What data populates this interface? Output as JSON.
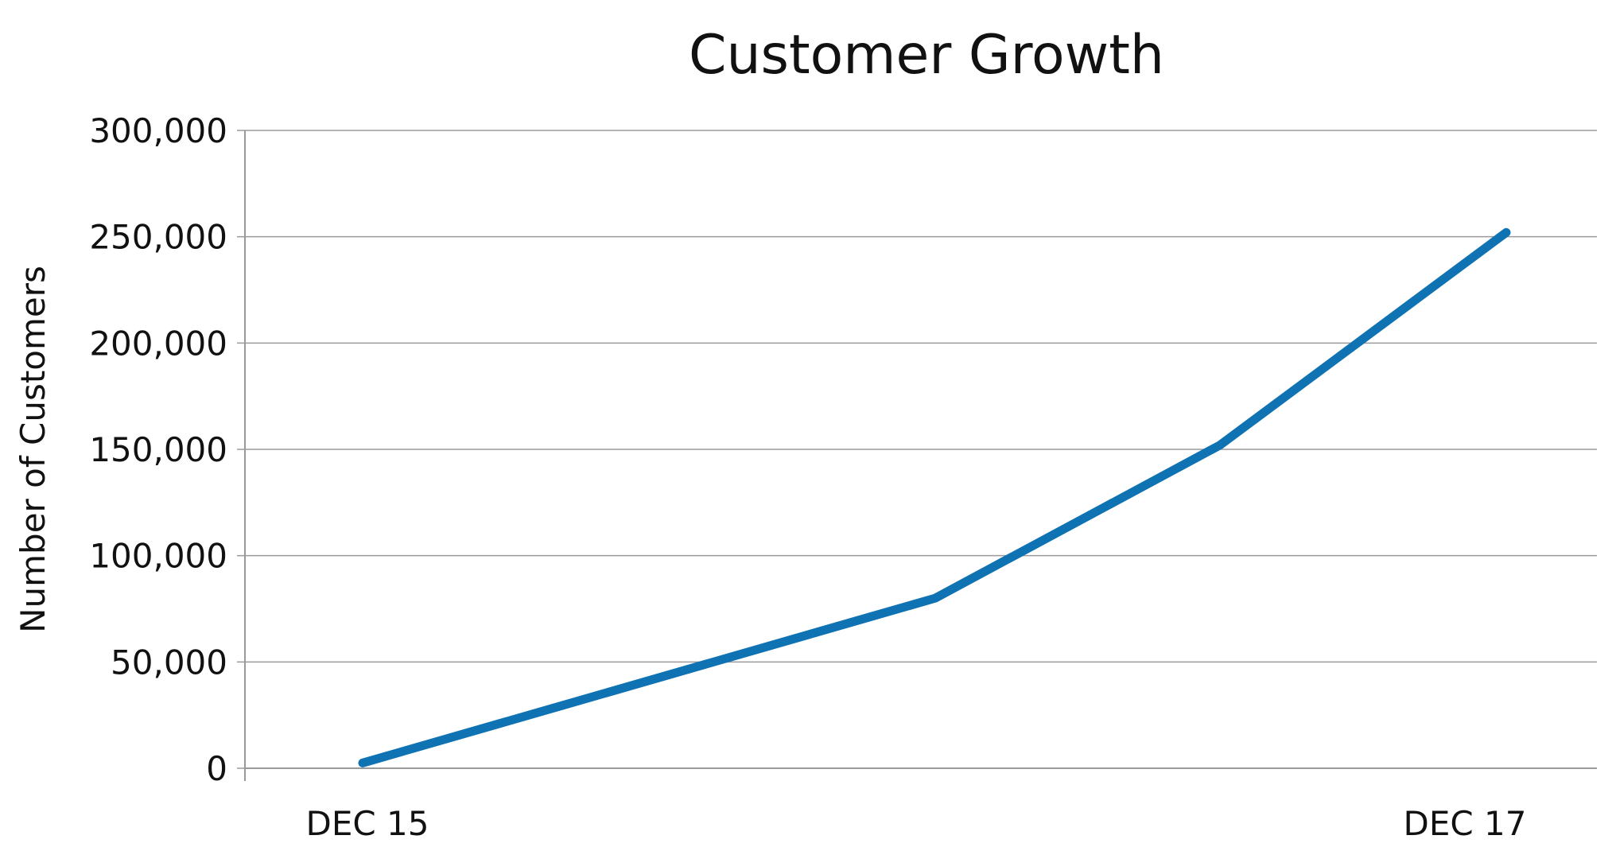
{
  "chart_data": {
    "type": "line",
    "title": "Customer Growth",
    "xlabel": "",
    "ylabel": "Number of Customers",
    "ylim": [
      0,
      300000
    ],
    "y_ticks": [
      0,
      50000,
      100000,
      150000,
      200000,
      250000,
      300000
    ],
    "y_tick_labels": [
      "0",
      "50,000",
      "100,000",
      "150,000",
      "200,000",
      "250,000",
      "300,000"
    ],
    "x_tick_labels": [
      "DEC 15",
      "DEC 17"
    ],
    "grid": true,
    "legend": "none",
    "series": [
      {
        "color": "#0f73b3",
        "points": [
          {
            "x": "2015-12",
            "y": 2500
          },
          {
            "x": "2016-12",
            "y": 80000
          },
          {
            "x": "2017-06",
            "y": 152000
          },
          {
            "x": "2017-12",
            "y": 252000
          }
        ]
      }
    ]
  }
}
